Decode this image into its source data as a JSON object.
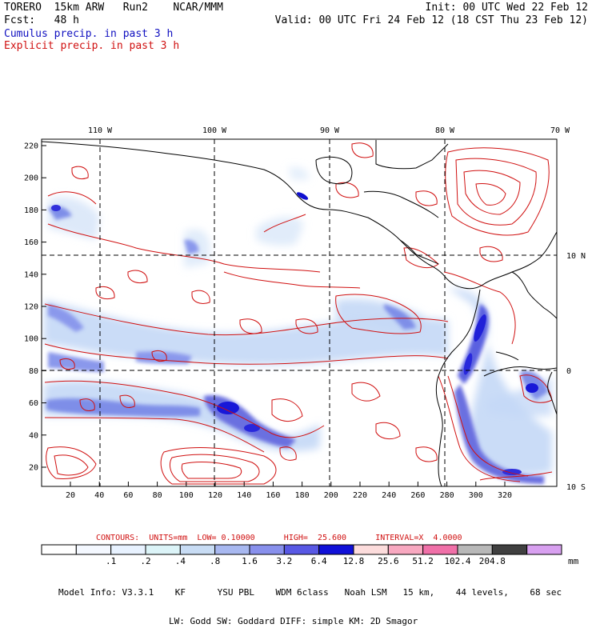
{
  "header": {
    "line1_left": "TORERO  15km ARW   Run2    NCAR/MMM",
    "line1_right": "Init: 00 UTC Wed 22 Feb 12",
    "line2_left": "Fcst:   48 h",
    "line2_right": "Valid: 00 UTC Fri 24 Feb 12 (18 CST Thu 23 Feb 12)",
    "field1": "Cumulus precip. in past 3 h",
    "field2": "Explicit precip. in past 3 h"
  },
  "colors": {
    "cumulus": "#1010c0",
    "explicit": "#d01010",
    "map_lines": "#000000"
  },
  "axes": {
    "top_lon": [
      "110 W",
      "100 W",
      "90 W",
      "80 W",
      "70 W"
    ],
    "right_lat": [
      "10 N",
      "0",
      "10 S"
    ],
    "left_y": [
      "220",
      "200",
      "180",
      "160",
      "140",
      "120",
      "100",
      "80",
      "60",
      "40",
      "20"
    ],
    "bottom_x": [
      "20",
      "40",
      "60",
      "80",
      "100",
      "120",
      "140",
      "160",
      "180",
      "200",
      "220",
      "240",
      "260",
      "280",
      "300",
      "320"
    ]
  },
  "contours_line": {
    "label": "CONTOURS:  UNITS=mm  LOW= 0.10000      HIGH=  25.600      INTERVAL=X  4.0000"
  },
  "colorbar": {
    "colors": [
      "#ffffff",
      "#f4f8ff",
      "#e8f2ff",
      "#dcf4f8",
      "#c8dcf4",
      "#a8b8f0",
      "#8890ec",
      "#5858e4",
      "#1010d8",
      "#fcdcdc",
      "#f8a8c0",
      "#f070a8",
      "#b8b8b8",
      "#404040",
      "#d8a0f0"
    ],
    "labels": [
      ".1",
      ".2",
      ".4",
      ".8",
      "1.6",
      "3.2",
      "6.4",
      "12.8",
      "25.6",
      "51.2",
      "102.4",
      "204.8"
    ],
    "unit": "mm"
  },
  "model_info": {
    "line1": "Model Info: V3.3.1    KF      YSU PBL    WDM 6class   Noah LSM   15 km,    44 levels,    68 sec",
    "line2": "LW: Godd SW: Goddard DIFF: simple KM: 2D Smagor"
  }
}
